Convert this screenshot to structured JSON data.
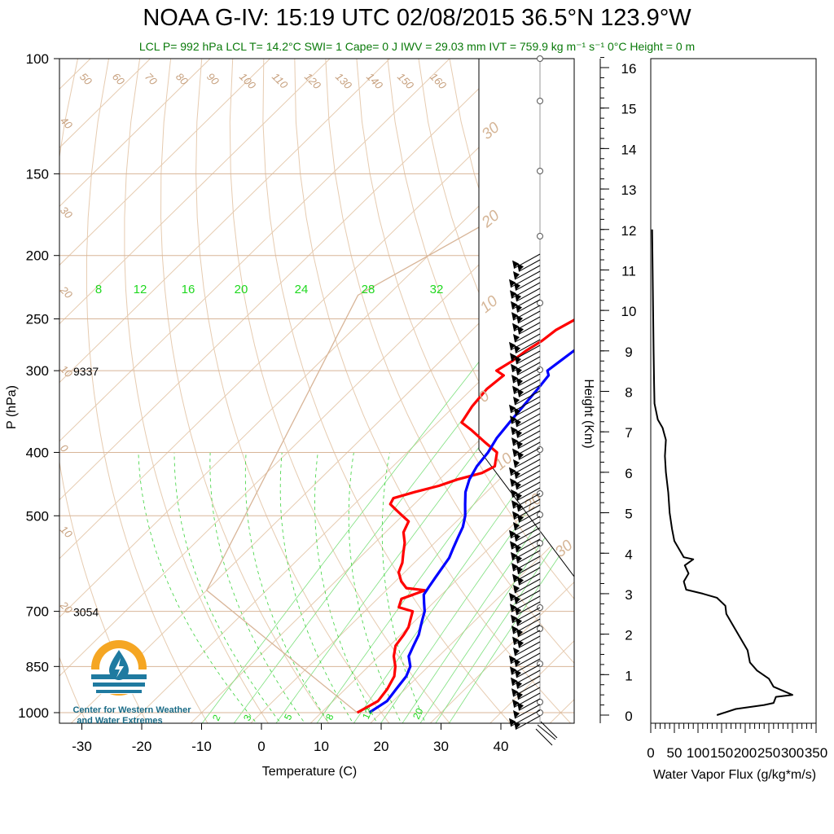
{
  "title": "NOAA G-IV: 15:19 UTC 02/08/2015  36.5°N 123.9°W",
  "subtitle": "LCL P= 992 hPa  LCL T= 14.2°C  SWI= 1  Cape= 0 J  IWV = 29.03 mm  IVT = 759.9 kg m⁻¹ s⁻¹  0°C Height = 0 m",
  "logo": {
    "line1": "Center for Western Weather",
    "line2": "and Water Extremes"
  },
  "colors": {
    "temperature": "#ff0000",
    "dewpoint": "#0000ff",
    "isotherm": "#c7a17f",
    "mixing_ratio": "#1fd81f",
    "flux": "#000000"
  },
  "chart_data": [
    {
      "type": "line",
      "subtype": "skew-T log-P sounding",
      "xlabel": "Temperature (C)",
      "ylabel": "P (hPa)",
      "xlim": [
        -34,
        50
      ],
      "ylim": [
        1000,
        100
      ],
      "y_scale": "log",
      "x_ticks": [
        "-30",
        "-20",
        "-10",
        "0",
        "10",
        "20",
        "30",
        "40"
      ],
      "y_ticks": [
        "100",
        "150",
        "200",
        "250",
        "300",
        "400",
        "500",
        "700",
        "850",
        "1000"
      ],
      "annotations": [
        {
          "text": "9337",
          "p": 300
        },
        {
          "text": "3054",
          "p": 700
        }
      ],
      "isotherm_labels": [
        "50",
        "60",
        "70",
        "80",
        "90",
        "100",
        "110",
        "120",
        "130",
        "140",
        "150",
        "160",
        "40",
        "30",
        "20",
        "10",
        "0",
        "10",
        "20"
      ],
      "adiabat_labels": [
        "30",
        "20",
        "10",
        "0",
        "10",
        "20",
        "30"
      ],
      "mixing_ratio_labels": [
        "8",
        "12",
        "16",
        "20",
        "24",
        "28",
        "32"
      ],
      "mixing_ratio_low_labels": [
        "2",
        "3",
        "5",
        "8",
        "12",
        "20"
      ],
      "series": [
        {
          "name": "Temperature",
          "points": [
            [
              16,
              1000
            ],
            [
              17.5,
              960
            ],
            [
              17,
              920
            ],
            [
              16,
              880
            ],
            [
              14.5,
              850
            ],
            [
              12.5,
              820
            ],
            [
              11,
              790
            ],
            [
              10.5,
              760
            ],
            [
              10,
              740
            ],
            [
              9,
              720
            ],
            [
              8,
              700
            ],
            [
              5,
              690
            ],
            [
              4,
              670
            ],
            [
              6.5,
              650
            ],
            [
              3,
              645
            ],
            [
              1,
              630
            ],
            [
              -1,
              610
            ],
            [
              -2,
              590
            ],
            [
              -3.5,
              570
            ],
            [
              -5,
              550
            ],
            [
              -7,
              530
            ],
            [
              -8,
              510
            ],
            [
              -10,
              500
            ],
            [
              -12,
              490
            ],
            [
              -14,
              480
            ],
            [
              -14.5,
              470
            ],
            [
              -12,
              460
            ],
            [
              -9,
              450
            ],
            [
              -7,
              440
            ],
            [
              -4,
              430
            ],
            [
              -3,
              420
            ],
            [
              -5,
              400
            ],
            [
              -9,
              385
            ],
            [
              -13,
              370
            ],
            [
              -16,
              360
            ],
            [
              -17,
              340
            ],
            [
              -17.5,
              320
            ],
            [
              -17,
              305
            ],
            [
              -19,
              300
            ],
            [
              -18,
              290
            ],
            [
              -17.5,
              280
            ],
            [
              -16.5,
              270
            ],
            [
              -16,
              260
            ],
            [
              -14.5,
              250
            ],
            [
              -14,
              240
            ],
            [
              -14,
              230
            ],
            [
              -14,
              220
            ],
            [
              -15,
              210
            ],
            [
              -16,
              200
            ],
            [
              -16.5,
              190
            ]
          ]
        },
        {
          "name": "Dewpoint",
          "points": [
            [
              18,
              1000
            ],
            [
              19,
              960
            ],
            [
              18.5,
              920
            ],
            [
              18,
              880
            ],
            [
              17,
              850
            ],
            [
              15,
              820
            ],
            [
              14,
              790
            ],
            [
              13,
              760
            ],
            [
              12,
              740
            ],
            [
              11,
              720
            ],
            [
              10,
              700
            ],
            [
              8.5,
              680
            ],
            [
              7,
              660
            ],
            [
              6.5,
              640
            ],
            [
              6,
              620
            ],
            [
              5.5,
              600
            ],
            [
              5,
              580
            ],
            [
              4,
              560
            ],
            [
              3,
              540
            ],
            [
              2,
              520
            ],
            [
              0.5,
              500
            ],
            [
              -1.5,
              480
            ],
            [
              -3.5,
              460
            ],
            [
              -5,
              440
            ],
            [
              -6,
              420
            ],
            [
              -6.5,
              400
            ],
            [
              -7.5,
              380
            ],
            [
              -8,
              360
            ],
            [
              -8.5,
              340
            ],
            [
              -9,
              320
            ],
            [
              -9.5,
              305
            ],
            [
              -10.5,
              300
            ],
            [
              -10,
              290
            ],
            [
              -9.5,
              280
            ],
            [
              -9,
              270
            ],
            [
              -8.5,
              260
            ],
            [
              -8,
              250
            ],
            [
              -7.5,
              240
            ],
            [
              -6.5,
              230
            ],
            [
              -6.5,
              220
            ],
            [
              -7,
              210
            ],
            [
              -7.5,
              200
            ],
            [
              -8,
              190
            ]
          ]
        }
      ]
    },
    {
      "type": "line",
      "xlabel": "Water Vapor Flux (g/kg*m/s)",
      "ylabel": "Height (Km)",
      "xlim": [
        0,
        350
      ],
      "ylim": [
        0,
        16.5
      ],
      "x_ticks": [
        "0",
        "50",
        "100",
        "150",
        "200",
        "250",
        "300",
        "350"
      ],
      "y_ticks": [
        "0",
        "1",
        "2",
        "3",
        "4",
        "5",
        "6",
        "7",
        "8",
        "9",
        "10",
        "11",
        "12",
        "13",
        "14",
        "15",
        "16"
      ],
      "series": [
        {
          "name": "Water Vapor Flux",
          "points": [
            [
              140,
              0
            ],
            [
              180,
              0.15
            ],
            [
              240,
              0.25
            ],
            [
              260,
              0.3
            ],
            [
              265,
              0.45
            ],
            [
              300,
              0.5
            ],
            [
              260,
              0.7
            ],
            [
              250,
              0.9
            ],
            [
              225,
              1.1
            ],
            [
              210,
              1.3
            ],
            [
              205,
              1.6
            ],
            [
              190,
              1.9
            ],
            [
              175,
              2.2
            ],
            [
              160,
              2.5
            ],
            [
              158,
              2.7
            ],
            [
              140,
              2.9
            ],
            [
              110,
              3.0
            ],
            [
              75,
              3.1
            ],
            [
              70,
              3.3
            ],
            [
              80,
              3.5
            ],
            [
              72,
              3.7
            ],
            [
              90,
              3.85
            ],
            [
              70,
              3.9
            ],
            [
              60,
              4.1
            ],
            [
              50,
              4.3
            ],
            [
              45,
              4.6
            ],
            [
              40,
              5.0
            ],
            [
              37,
              5.5
            ],
            [
              32,
              6.0
            ],
            [
              30,
              6.4
            ],
            [
              32,
              6.8
            ],
            [
              25,
              7.1
            ],
            [
              15,
              7.3
            ],
            [
              8,
              7.7
            ],
            [
              7,
              8.2
            ],
            [
              6,
              9.0
            ],
            [
              5,
              10.0
            ],
            [
              4,
              11.0
            ],
            [
              3,
              12.0
            ]
          ]
        }
      ]
    }
  ]
}
